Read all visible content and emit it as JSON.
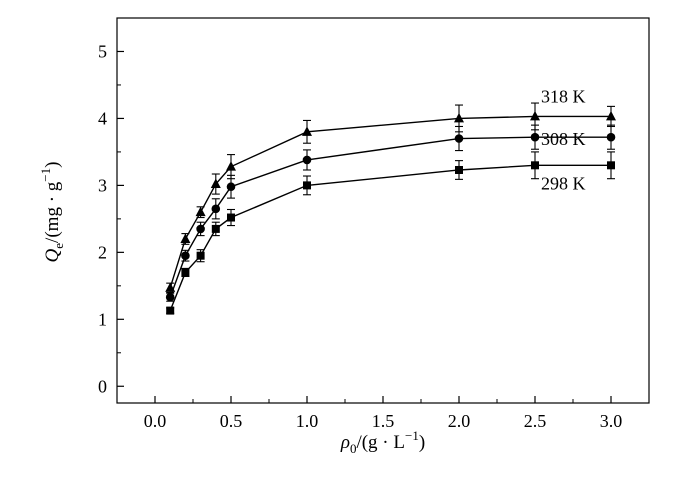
{
  "chart_data": {
    "type": "line",
    "xlabel": "ρ0/(g·L−1)",
    "ylabel": "Qe/(mg·g−1)",
    "xlim": [
      -0.25,
      3.25
    ],
    "ylim": [
      -0.25,
      5.5
    ],
    "xticks": [
      "0.0",
      "0.5",
      "1.0",
      "1.5",
      "2.0",
      "2.5",
      "3.0"
    ],
    "yticks": [
      "0",
      "1",
      "2",
      "3",
      "4",
      "5"
    ],
    "x": [
      0.1,
      0.2,
      0.3,
      0.4,
      0.5,
      1.0,
      2.0,
      2.5,
      3.0
    ],
    "grid": false,
    "series": [
      {
        "name": "318 K",
        "marker": "triangle",
        "values": [
          1.47,
          2.2,
          2.6,
          3.02,
          3.28,
          3.8,
          4.0,
          4.03,
          4.03
        ],
        "errors": [
          0.07,
          0.08,
          0.08,
          0.15,
          0.18,
          0.17,
          0.2,
          0.2,
          0.15
        ]
      },
      {
        "name": "308 K",
        "marker": "circle",
        "values": [
          1.33,
          1.95,
          2.35,
          2.65,
          2.98,
          3.38,
          3.7,
          3.72,
          3.72
        ],
        "errors": [
          0.06,
          0.08,
          0.1,
          0.15,
          0.17,
          0.15,
          0.18,
          0.18,
          0.18
        ]
      },
      {
        "name": "298 K",
        "marker": "square",
        "values": [
          1.13,
          1.7,
          1.95,
          2.35,
          2.52,
          3.0,
          3.23,
          3.3,
          3.3
        ],
        "errors": [
          0.04,
          0.06,
          0.09,
          0.1,
          0.12,
          0.14,
          0.14,
          0.2,
          0.2
        ]
      }
    ]
  }
}
